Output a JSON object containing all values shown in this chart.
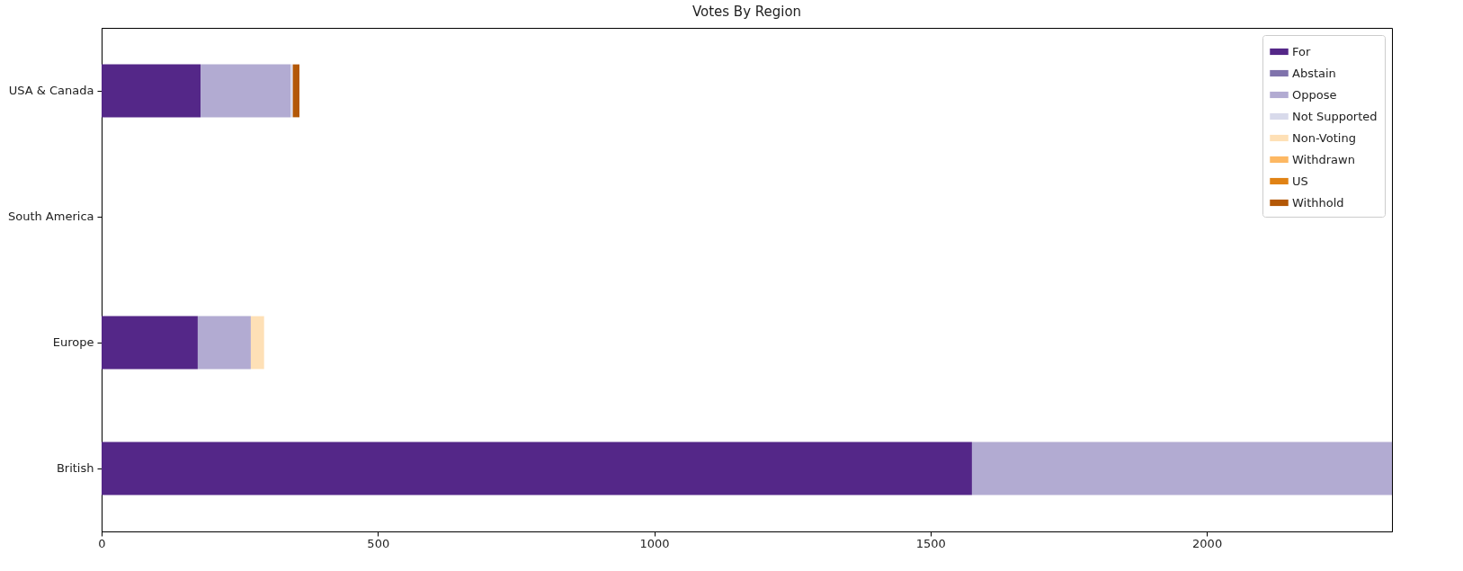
{
  "chart_data": {
    "type": "bar",
    "orientation": "horizontal",
    "stacked": true,
    "title": "Votes By Region",
    "categories": [
      "USA & Canada",
      "South America",
      "Europe",
      "British"
    ],
    "series": [
      {
        "name": "For",
        "color": "#542788",
        "values": [
          179,
          0,
          174,
          1575
        ]
      },
      {
        "name": "Abstain",
        "color": "#8073ac",
        "values": [
          0,
          0,
          0,
          0
        ]
      },
      {
        "name": "Oppose",
        "color": "#b2abd2",
        "values": [
          163,
          0,
          96,
          760
        ]
      },
      {
        "name": "Not Supported",
        "color": "#d8daeb",
        "values": [
          4,
          0,
          0,
          0
        ]
      },
      {
        "name": "Non-Voting",
        "color": "#fee0b6",
        "values": [
          0,
          0,
          24,
          0
        ]
      },
      {
        "name": "Withdrawn",
        "color": "#fdb863",
        "values": [
          0,
          0,
          0,
          0
        ]
      },
      {
        "name": "US",
        "color": "#e08214",
        "values": [
          0,
          0,
          0,
          0
        ]
      },
      {
        "name": "Withhold",
        "color": "#b35806",
        "values": [
          12,
          0,
          0,
          0
        ]
      }
    ],
    "xlim": [
      0,
      2335
    ],
    "xticks": [
      0,
      500,
      1000,
      1500,
      2000
    ],
    "grid": false,
    "legend": "top right"
  }
}
